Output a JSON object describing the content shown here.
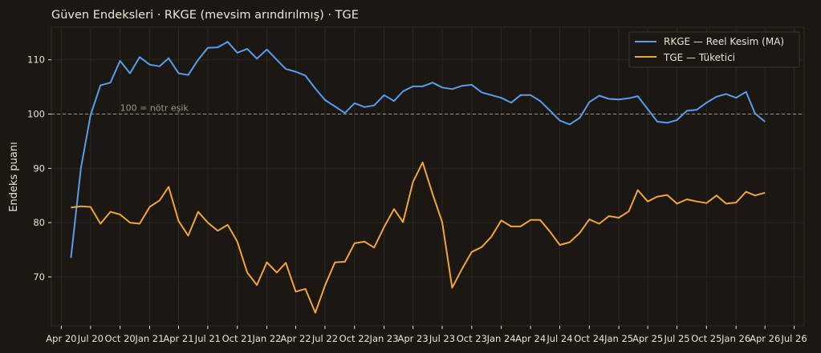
{
  "chart_data": {
    "type": "line",
    "title": "Güven Endeksleri · RKGE (mevsim arındırılmış) · TGE",
    "xlabel": "",
    "ylabel": "Endeks puanı",
    "ylim": [
      61,
      116
    ],
    "xlim": [
      "2020-03-01",
      "2026-08-01"
    ],
    "yticks": [
      70,
      80,
      90,
      100,
      110
    ],
    "xticks": [
      {
        "date": "2020-04-01",
        "label": "Apr 20"
      },
      {
        "date": "2020-07-01",
        "label": "Jul 20"
      },
      {
        "date": "2020-10-01",
        "label": "Oct 20"
      },
      {
        "date": "2021-01-01",
        "label": "Jan 21"
      },
      {
        "date": "2021-04-01",
        "label": "Apr 21"
      },
      {
        "date": "2021-07-01",
        "label": "Jul 21"
      },
      {
        "date": "2021-10-01",
        "label": "Oct 21"
      },
      {
        "date": "2022-01-01",
        "label": "Jan 22"
      },
      {
        "date": "2022-04-01",
        "label": "Apr 22"
      },
      {
        "date": "2022-07-01",
        "label": "Jul 22"
      },
      {
        "date": "2022-10-01",
        "label": "Oct 22"
      },
      {
        "date": "2023-01-01",
        "label": "Jan 23"
      },
      {
        "date": "2023-04-01",
        "label": "Apr 23"
      },
      {
        "date": "2023-07-01",
        "label": "Jul 23"
      },
      {
        "date": "2023-10-01",
        "label": "Oct 23"
      },
      {
        "date": "2024-01-01",
        "label": "Jan 24"
      },
      {
        "date": "2024-04-01",
        "label": "Apr 24"
      },
      {
        "date": "2024-07-01",
        "label": "Jul 24"
      },
      {
        "date": "2024-10-01",
        "label": "Oct 24"
      },
      {
        "date": "2025-01-01",
        "label": "Jan 25"
      },
      {
        "date": "2025-04-01",
        "label": "Apr 25"
      },
      {
        "date": "2025-07-01",
        "label": "Jul 25"
      },
      {
        "date": "2025-10-01",
        "label": "Oct 25"
      },
      {
        "date": "2026-01-01",
        "label": "Jan 26"
      },
      {
        "date": "2026-04-01",
        "label": "Apr 26"
      },
      {
        "date": "2026-07-01",
        "label": "Jul 26"
      }
    ],
    "x": [
      "2020-05",
      "2020-06",
      "2020-07",
      "2020-08",
      "2020-09",
      "2020-10",
      "2020-11",
      "2020-12",
      "2021-01",
      "2021-02",
      "2021-03",
      "2021-04",
      "2021-05",
      "2021-06",
      "2021-07",
      "2021-08",
      "2021-09",
      "2021-10",
      "2021-11",
      "2021-12",
      "2022-01",
      "2022-02",
      "2022-03",
      "2022-04",
      "2022-05",
      "2022-06",
      "2022-07",
      "2022-08",
      "2022-09",
      "2022-10",
      "2022-11",
      "2022-12",
      "2023-01",
      "2023-02",
      "2023-03",
      "2023-04",
      "2023-05",
      "2023-06",
      "2023-07",
      "2023-08",
      "2023-09",
      "2023-10",
      "2023-11",
      "2023-12",
      "2024-01",
      "2024-02",
      "2024-03",
      "2024-04",
      "2024-05",
      "2024-06",
      "2024-07",
      "2024-08",
      "2024-09",
      "2024-10",
      "2024-11",
      "2024-12",
      "2025-01",
      "2025-02",
      "2025-03",
      "2025-04",
      "2025-05",
      "2025-06",
      "2025-07",
      "2025-08",
      "2025-09",
      "2025-10",
      "2025-11",
      "2025-12",
      "2026-01",
      "2026-02",
      "2026-03",
      "2026-04"
    ],
    "series": [
      {
        "name": "RKGE — Reel Kesim (MA)",
        "color": "#5b9bea",
        "values": [
          73.5,
          90,
          99.8,
          105.3,
          105.8,
          109.8,
          107.5,
          110.5,
          109.1,
          108.8,
          110.3,
          107.5,
          107.2,
          110,
          112.2,
          112.3,
          113.3,
          111.3,
          112,
          110.2,
          111.9,
          110,
          108.3,
          107.8,
          107.1,
          104.7,
          102.6,
          101.4,
          100.2,
          102,
          101.3,
          101.6,
          103.5,
          102.4,
          104.2,
          105.1,
          105.1,
          105.8,
          104.9,
          104.6,
          105.2,
          105.4,
          104,
          103.5,
          103,
          102.1,
          103.5,
          103.5,
          102.4,
          100.6,
          98.8,
          98.1,
          99.3,
          102.2,
          103.4,
          102.8,
          102.7,
          102.9,
          103.3,
          100.9,
          98.6,
          98.4,
          98.9,
          100.6,
          100.8,
          102.1,
          103.2,
          103.7,
          103,
          104.1,
          100.1,
          98.6
        ]
      },
      {
        "name": "TGE — Tüketici",
        "color": "#f0a43a",
        "values": [
          82.8,
          83,
          82.9,
          79.8,
          82,
          81.5,
          80,
          79.8,
          82.9,
          84.1,
          86.6,
          80.3,
          77.6,
          82,
          80,
          78.5,
          79.6,
          76.5,
          70.8,
          68.5,
          72.7,
          70.8,
          72.6,
          67.3,
          67.8,
          63.4,
          68.4,
          72.7,
          72.8,
          76.2,
          76.5,
          75.4,
          79.2,
          82.5,
          80.1,
          87.5,
          91.1,
          85.3,
          80.1,
          68,
          71.5,
          74.6,
          75.5,
          77.4,
          80.4,
          79.3,
          79.3,
          80.5,
          80.5,
          78.3,
          75.9,
          76.4,
          78.1,
          80.6,
          79.8,
          81.2,
          80.9,
          82.1,
          86,
          83.9,
          84.8,
          85.1,
          83.5,
          84.3,
          83.9,
          83.6,
          85,
          83.5,
          83.7,
          85.7,
          85,
          85.5
        ]
      }
    ],
    "reference_line": {
      "y": 100,
      "label": "100 = nötr eşik",
      "color": "#9a9388"
    },
    "legend_position": "top-right",
    "grid": true,
    "colors": {
      "background": "#1b1814",
      "axis": "#e8e2d6",
      "grid": "#2b2722",
      "spine": "#2f2b25"
    }
  }
}
